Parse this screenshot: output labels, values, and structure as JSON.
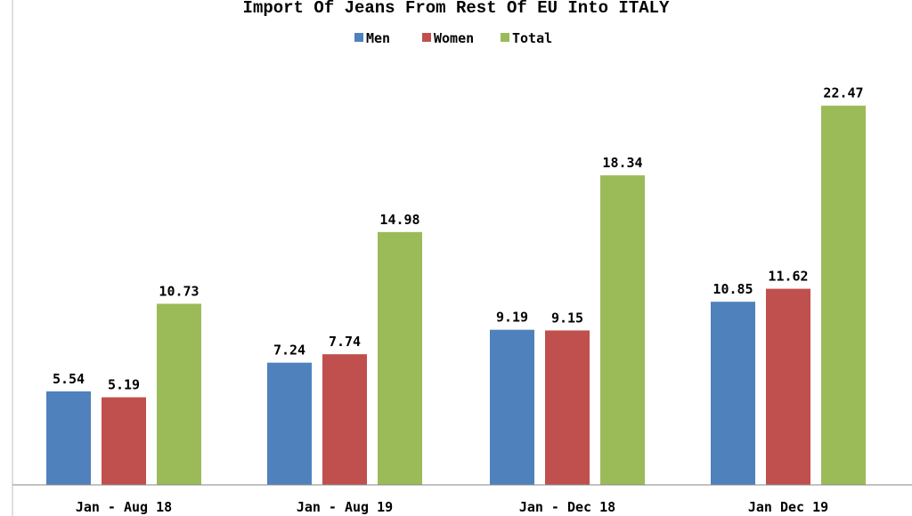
{
  "chart_data": {
    "type": "bar",
    "title": "Import Of Jeans From Rest Of EU Into ITALY",
    "categories": [
      "Jan - Aug 18",
      "Jan - Aug 19",
      "Jan - Dec 18",
      "Jan Dec 19"
    ],
    "series": [
      {
        "name": "Men",
        "color": "#4f81bd",
        "values": [
          5.54,
          7.24,
          9.19,
          10.85
        ]
      },
      {
        "name": "Women",
        "color": "#c0504d",
        "values": [
          5.19,
          7.74,
          9.15,
          11.62
        ]
      },
      {
        "name": "Total",
        "color": "#9bbb59",
        "values": [
          10.73,
          14.98,
          18.34,
          22.47
        ]
      }
    ],
    "ylim": [
      0,
      25
    ],
    "grid": false,
    "legend_position": "top"
  }
}
